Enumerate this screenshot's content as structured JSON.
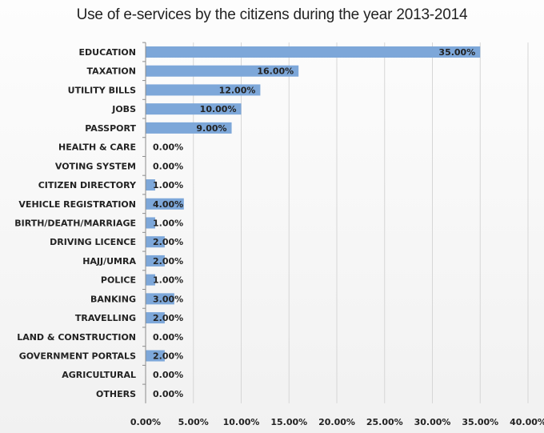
{
  "chart_data": {
    "type": "bar",
    "orientation": "horizontal",
    "title": "Use of e-services by the citizens during the year 2013-2014",
    "categories": [
      "EDUCATION",
      "TAXATION",
      "UTILITY BILLS",
      "JOBS",
      "PASSPORT",
      "HEALTH & CARE",
      "VOTING SYSTEM",
      "CITIZEN DIRECTORY",
      "VEHICLE REGISTRATION",
      "BIRTH/DEATH/MARRIAGE",
      "DRIVING LICENCE",
      "HAJJ/UMRA",
      "POLICE",
      "BANKING",
      "TRAVELLING",
      "LAND & CONSTRUCTION",
      "GOVERNMENT PORTALS",
      "AGRICULTURAL",
      "OTHERS"
    ],
    "values": [
      35,
      16,
      12,
      10,
      9,
      0,
      0,
      1,
      4,
      1,
      2,
      2,
      1,
      3,
      2,
      0,
      2,
      0,
      0
    ],
    "data_labels": [
      "35.00%",
      "16.00%",
      "12.00%",
      "10.00%",
      "9.00%",
      "0.00%",
      "0.00%",
      "1.00%",
      "4.00%",
      "1.00%",
      "2.00%",
      "2.00%",
      "1.00%",
      "3.00%",
      "2.00%",
      "0.00%",
      "2.00%",
      "0.00%",
      "0.00%"
    ],
    "x_ticks": [
      0,
      5,
      10,
      15,
      20,
      25,
      30,
      35,
      40
    ],
    "x_tick_labels": [
      "0.00%",
      "5.00%",
      "10.00%",
      "15.00%",
      "20.00%",
      "25.00%",
      "30.00%",
      "35.00%",
      "40.00%"
    ],
    "xlim": [
      0,
      40
    ],
    "xlabel": "",
    "ylabel": "",
    "grid": "vertical",
    "legend": "none",
    "colors": {
      "bar": "#7da7d9",
      "grid": "#d6d6d6",
      "axis": "#8c8c8c",
      "text": "#222222",
      "background_top": "#fdfdfd",
      "background_bottom": "#f1f1f1"
    }
  }
}
